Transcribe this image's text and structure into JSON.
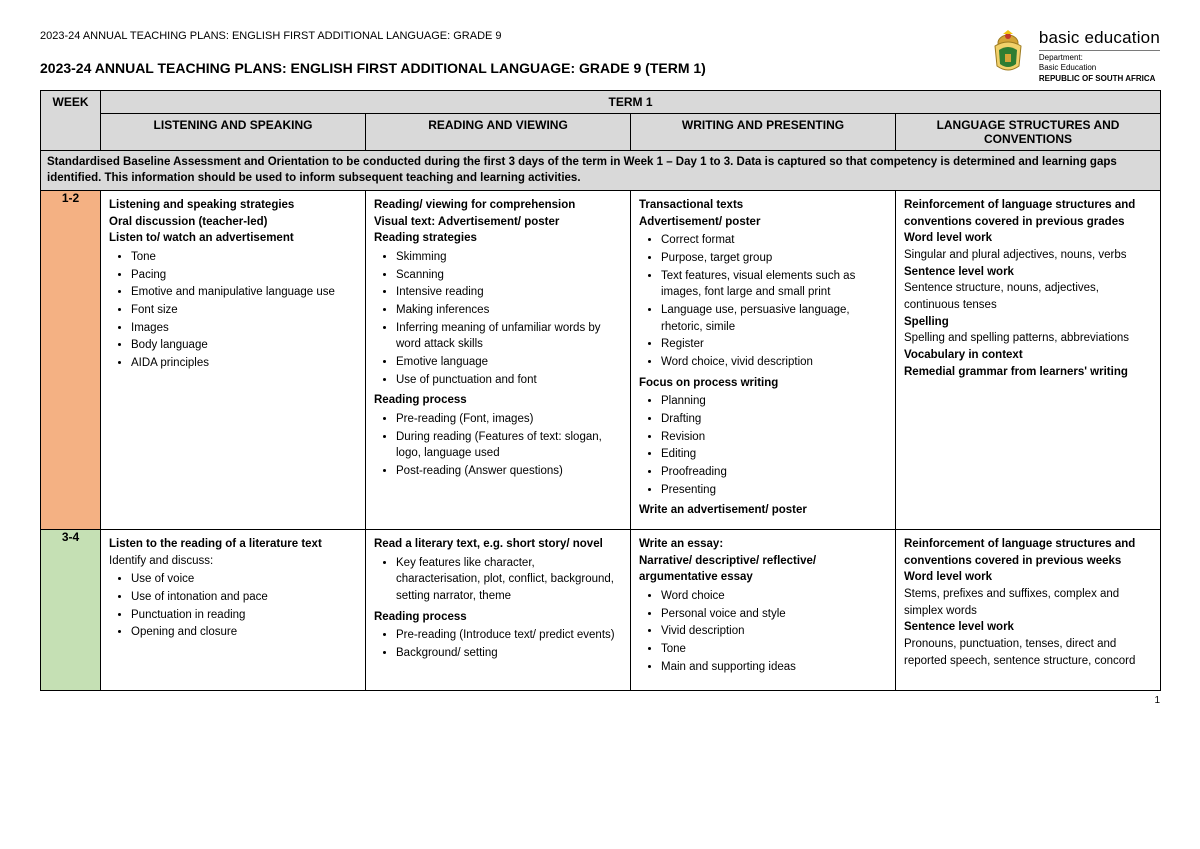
{
  "doc_header": "2023-24 ANNUAL TEACHING PLANS: ENGLISH FIRST ADDITIONAL LANGUAGE: GRADE 9",
  "main_title": "2023-24 ANNUAL TEACHING PLANS: ENGLISH FIRST ADDITIONAL LANGUAGE: GRADE 9 (TERM 1)",
  "logo": {
    "brand": "basic education",
    "dept1": "Department:",
    "dept2": "Basic Education",
    "dept3": "REPUBLIC OF SOUTH AFRICA"
  },
  "term_label": "TERM 1",
  "columns": {
    "week": "WEEK",
    "c1": "LISTENING AND SPEAKING",
    "c2": "READING AND VIEWING",
    "c3": "WRITING AND PRESENTING",
    "c4": "LANGUAGE STRUCTURES AND CONVENTIONS"
  },
  "baseline": "Standardised Baseline Assessment and Orientation to be conducted during the first 3 days of the term in Week 1 – Day 1 to 3. Data is captured so that competency is determined and learning gaps identified. This information should be used to inform subsequent teaching and learning activities.",
  "row1": {
    "week": "1-2",
    "listening": {
      "h1": "Listening and speaking strategies",
      "h2": "Oral discussion (teacher-led)",
      "h3": "Listen to/ watch an advertisement",
      "items": [
        "Tone",
        "Pacing",
        "Emotive and manipulative language use",
        "Font size",
        "Images",
        "Body language",
        "AIDA principles"
      ]
    },
    "reading": {
      "h1": "Reading/ viewing for comprehension",
      "h2": "Visual text: Advertisement/ poster",
      "h3": "Reading strategies",
      "items1": [
        "Skimming",
        "Scanning",
        "Intensive reading",
        "Making inferences",
        "Inferring meaning of unfamiliar words by word attack skills",
        "Emotive language",
        "Use of punctuation and font"
      ],
      "h4": "Reading process",
      "items2": [
        "Pre-reading (Font, images)",
        "During reading (Features of text: slogan, logo, language used",
        "Post-reading (Answer questions)"
      ]
    },
    "writing": {
      "h1": "Transactional texts",
      "h2": "Advertisement/ poster",
      "items1": [
        "Correct format",
        "Purpose, target group",
        "Text features, visual elements such as images, font large and small print",
        "Language use, persuasive language, rhetoric, simile",
        "Register",
        "Word choice, vivid description"
      ],
      "h3": "Focus on process writing",
      "items2": [
        "Planning",
        "Drafting",
        "Revision",
        "Editing",
        "Proofreading",
        "Presenting"
      ],
      "h4": "Write an advertisement/ poster"
    },
    "language": {
      "h1": "Reinforcement of language structures and conventions covered in previous grades",
      "h2": "Word level work",
      "t1": "Singular and plural adjectives, nouns, verbs",
      "h3": "Sentence level work",
      "t2": "Sentence structure, nouns, adjectives, continuous tenses",
      "h4": "Spelling",
      "t3": "Spelling and spelling patterns, abbreviations",
      "h5": "Vocabulary in context",
      "h6": "Remedial grammar from learners' writing"
    }
  },
  "row2": {
    "week": "3-4",
    "listening": {
      "h1": "Listen to the reading of a literature text",
      "t1": "Identify and discuss:",
      "items": [
        "Use of voice",
        "Use of intonation and pace",
        "Punctuation in reading",
        "Opening and closure"
      ]
    },
    "reading": {
      "h1": "Read a literary text, e.g. short story/ novel",
      "items1": [
        "Key features like character, characterisation, plot, conflict, background, setting narrator, theme"
      ],
      "h2": "Reading process",
      "items2": [
        "Pre-reading (Introduce text/ predict events)",
        "Background/ setting"
      ]
    },
    "writing": {
      "h1": "Write an essay:",
      "h2": "Narrative/ descriptive/ reflective/ argumentative essay",
      "items": [
        "Word choice",
        "Personal voice and style",
        "Vivid description",
        "Tone",
        "Main and supporting ideas"
      ]
    },
    "language": {
      "h1": "Reinforcement of language structures and conventions covered in previous weeks",
      "h2": "Word level work",
      "t1": "Stems, prefixes and suffixes, complex and simplex words",
      "h3": "Sentence level work",
      "t2": "Pronouns, punctuation, tenses, direct and reported speech, sentence structure, concord"
    }
  },
  "page_number": "1",
  "colors": {
    "header_bg": "#d9d9d9",
    "week12_bg": "#f4b183",
    "week34_bg": "#c5e0b4"
  }
}
